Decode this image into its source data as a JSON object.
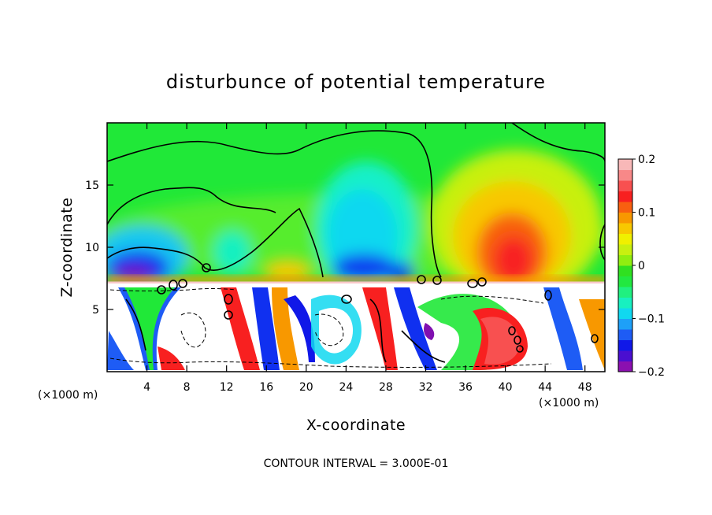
{
  "chart_data": {
    "type": "heatmap",
    "title": "disturbunce of potential temperature",
    "xlabel": "X-coordinate",
    "ylabel": "Z-coordinate",
    "x_unit_left": "(×1000 m)",
    "x_unit_right": "(×1000 m)",
    "xlim": [
      0,
      50
    ],
    "ylim": [
      0,
      20
    ],
    "x_ticks": [
      4,
      8,
      12,
      16,
      20,
      24,
      28,
      32,
      36,
      40,
      44,
      48
    ],
    "y_ticks": [
      5,
      10,
      15
    ],
    "colorbar": {
      "min": -0.2,
      "max": 0.2,
      "tick_values": [
        0.2,
        0.1,
        0,
        -0.1,
        -0.2
      ],
      "tick_labels": [
        "0.2",
        "0.1",
        "0",
        "−0.1",
        "−0.2"
      ],
      "colors": [
        "#8b10b0",
        "#4a0fd0",
        "#1018e8",
        "#1e5cf5",
        "#1ea0f8",
        "#10d8f0",
        "#18f0c0",
        "#20f080",
        "#22e840",
        "#30e020",
        "#90ee10",
        "#c8f010",
        "#f0f000",
        "#f8c800",
        "#f89800",
        "#f86010",
        "#f82020",
        "#f85050",
        "#f88888",
        "#f8b8b8"
      ]
    },
    "features": [
      {
        "kind": "cold_anomaly",
        "x": 6,
        "z": 8.3,
        "value": -0.18
      },
      {
        "kind": "cold_anomaly",
        "x": 25.5,
        "z": 10.5,
        "value": -0.1
      },
      {
        "kind": "warm_anomaly",
        "x": 40.5,
        "z": 10.5,
        "value": 0.16
      },
      {
        "kind": "warm_anomaly",
        "x": 40,
        "z": 2.5,
        "value": 0.15
      },
      {
        "kind": "boundary_layer_top",
        "z": 7.2
      }
    ],
    "contour_interval_label": "CONTOUR INTERVAL = 3.000E-01"
  }
}
